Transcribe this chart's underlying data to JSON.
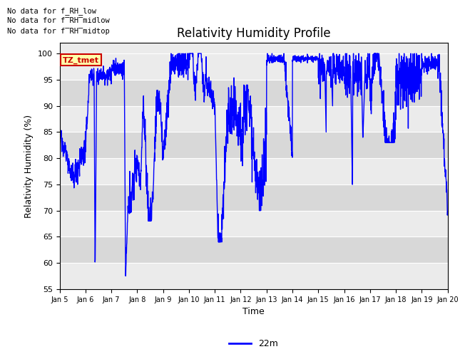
{
  "title": "Relativity Humidity Profile",
  "ylabel": "Relativity Humidity (%)",
  "xlabel": "Time",
  "ylim": [
    55,
    102
  ],
  "yticks": [
    55,
    60,
    65,
    70,
    75,
    80,
    85,
    90,
    95,
    100
  ],
  "line_color": "blue",
  "line_width": 1.0,
  "legend_label": "22m",
  "legend_color": "blue",
  "annotations": [
    "No data for f_RH_low",
    "No data for f̅RH̅midlow",
    "No data for f̅RH̅midtop"
  ],
  "tz_label": "TZ_tmet",
  "tz_box_facecolor": "#FFFFAA",
  "tz_box_edgecolor": "#CC0000",
  "tz_text_color": "#CC0000",
  "plot_bg_color_light": "#EBEBEB",
  "plot_bg_color_dark": "#D8D8D8",
  "grid_color": "white",
  "grid_lw": 0.8,
  "xtick_labels": [
    "Jan 5",
    "Jan 6",
    "Jan 7",
    "Jan 8",
    "Jan 9",
    "Jan 10",
    "Jan 11",
    "Jan 12",
    "Jan 13",
    "Jan 14",
    "Jan 15",
    "Jan 16",
    "Jan 17",
    "Jan 18",
    "Jan 19",
    "Jan 20"
  ],
  "num_days": 15,
  "points_per_day": 144
}
